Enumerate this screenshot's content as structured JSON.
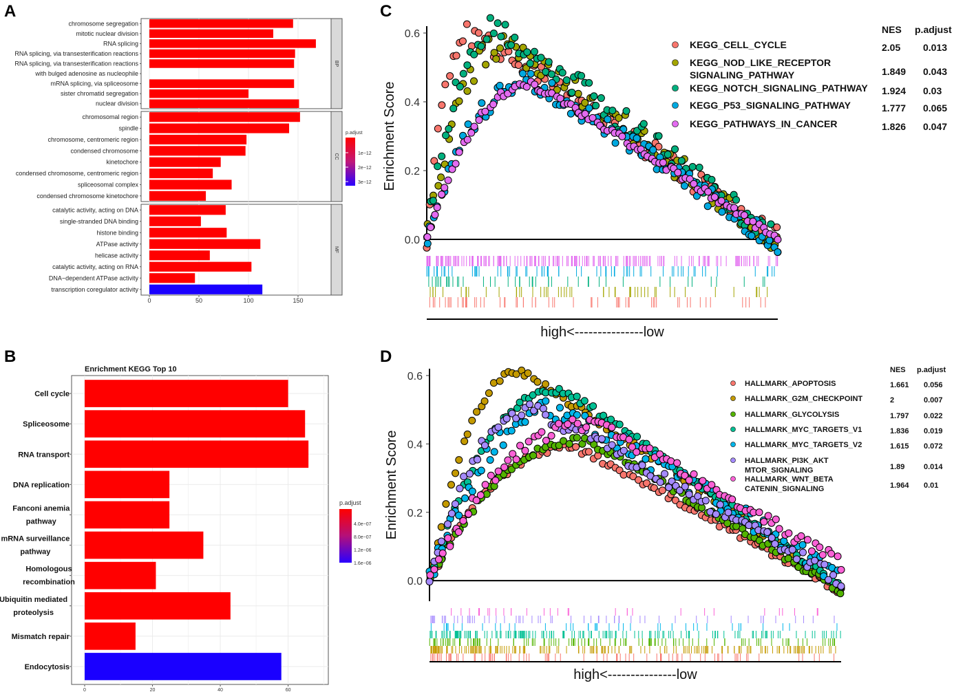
{
  "panels": {
    "A": "A",
    "B": "B",
    "C": "C",
    "D": "D"
  },
  "chart_data": [
    {
      "id": "A",
      "type": "bar",
      "orientation": "horizontal",
      "facets": [
        {
          "name": "BP",
          "categories": [
            "chromosome segregation",
            "mitotic nuclear division",
            "RNA splicing",
            "RNA splicing, via transesterification reactions",
            "RNA splicing, via transesterification reactions",
            "with bulged adenosine as nucleophile",
            "mRNA splicing, via spliceosome",
            "sister chromatid segregation",
            "nuclear division"
          ],
          "values": [
            145,
            125,
            168,
            147,
            146,
            null,
            146,
            100,
            151
          ],
          "colors": [
            "#ff0000",
            "#ff0000",
            "#ff0000",
            "#ff0000",
            "#ff0000",
            "#ff0000",
            "#ff0000",
            "#ff0000",
            "#ff0000"
          ]
        },
        {
          "name": "CC",
          "categories": [
            "chromosomal region",
            "spindle",
            "chromosome, centromeric region",
            "condensed chromosome",
            "kinetochore",
            "condensed chromosome, centromeric region",
            "spliceosomal complex",
            "condensed chromosome kinetochore"
          ],
          "values": [
            152,
            141,
            98,
            97,
            72,
            64,
            83,
            57
          ],
          "colors": [
            "#ff0000",
            "#ff0000",
            "#ff0000",
            "#ff0000",
            "#ff0000",
            "#ff0000",
            "#ff0000",
            "#ff0000"
          ]
        },
        {
          "name": "MF",
          "categories": [
            "catalytic activity, acting on DNA",
            "single-stranded DNA binding",
            "histone binding",
            "ATPase activity",
            "helicase activity",
            "catalytic activity, acting on RNA",
            "DNA−dependent ATPase activity",
            "transcription coregulator activity"
          ],
          "values": [
            77,
            52,
            78,
            112,
            61,
            103,
            46,
            114
          ],
          "colors": [
            "#ff0000",
            "#ff0000",
            "#ff0000",
            "#ff0000",
            "#ff0000",
            "#ff0000",
            "#ff0000",
            "#1a00ff"
          ]
        }
      ],
      "xticks": [
        0,
        50,
        100,
        150
      ],
      "xlim": [
        0,
        175
      ],
      "legend": {
        "title": "p.adjust",
        "labels": [
          "1e−12",
          "2e−12",
          "3e−12"
        ],
        "colors": [
          "#ff0000",
          "#c0187a",
          "#2a00ff"
        ]
      }
    },
    {
      "id": "B",
      "type": "bar",
      "orientation": "horizontal",
      "title": "Enrichment KEGG Top 10",
      "categories": [
        [
          "Cell cycle"
        ],
        [
          "Spliceosome"
        ],
        [
          "RNA transport"
        ],
        [
          "DNA replication"
        ],
        [
          "Fanconi anemia",
          "pathway"
        ],
        [
          "mRNA surveillance",
          "pathway"
        ],
        [
          "Homologous",
          "recombination"
        ],
        [
          "Ubiquitin mediated",
          "proteolysis"
        ],
        [
          "Mismatch repair"
        ],
        [
          "Endocytosis"
        ]
      ],
      "values": [
        60,
        65,
        66,
        25,
        25,
        35,
        21,
        43,
        15,
        58
      ],
      "colors": [
        "#ff0000",
        "#ff0000",
        "#ff0000",
        "#ff0000",
        "#ff0000",
        "#ff0000",
        "#ff0000",
        "#ff0000",
        "#ff0000",
        "#1a00ff"
      ],
      "xticks": [
        0,
        20,
        40,
        60
      ],
      "xlim": [
        0,
        68
      ],
      "legend": {
        "title": "p.adjust",
        "labels": [
          "4.0e−07",
          "8.0e−07",
          "1.2e−06",
          "1.6e−06"
        ],
        "colors": [
          "#ff0000",
          "#2a00ff"
        ]
      }
    },
    {
      "id": "C",
      "type": "scatter",
      "ylabel": "Enrichment Score",
      "yticks": [
        "0.0",
        "0.2",
        "0.4",
        "0.6"
      ],
      "ylim": [
        -0.02,
        0.62
      ],
      "xlabel": "high<---------------low",
      "legend_header": {
        "nes": "NES",
        "padj": "p.adjust"
      },
      "series": [
        {
          "name": "KEGG_CELL_CYCLE",
          "nes": "2.05",
          "padj": "0.013",
          "color": "#f8766d",
          "peak": 0.6,
          "peak_x": 0.12,
          "end": 0.0,
          "noise": 0.035,
          "ticks": 60
        },
        {
          "name": [
            "KEGG_NOD_LIKE_RECEPTOR",
            "SIGNALING_PATHWAY"
          ],
          "nes": "1.849",
          "padj": "0.043",
          "color": "#a3a500",
          "peak": 0.56,
          "peak_x": 0.22,
          "end": 0.0,
          "noise": 0.04,
          "ticks": 50
        },
        {
          "name": "KEGG_NOTCH_SIGNALING_PATHWAY",
          "nes": "1.924",
          "padj": "0.03",
          "color": "#00b07e",
          "peak": 0.61,
          "peak_x": 0.2,
          "end": 0.0,
          "noise": 0.04,
          "ticks": 45
        },
        {
          "name": "KEGG_P53_SIGNALING_PATHWAY",
          "nes": "1.777",
          "padj": "0.065",
          "color": "#00a9e0",
          "peak": 0.46,
          "peak_x": 0.3,
          "end": -0.015,
          "noise": 0.03,
          "ticks": 70
        },
        {
          "name": "KEGG_PATHWAYS_IN_CANCER",
          "nes": "1.826",
          "padj": "0.047",
          "color": "#e36bf0",
          "peak": 0.45,
          "peak_x": 0.3,
          "end": 0.0,
          "noise": 0.01,
          "ticks": 200
        }
      ]
    },
    {
      "id": "D",
      "type": "scatter",
      "ylabel": "Enrichment Score",
      "yticks": [
        "0.0",
        "0.2",
        "0.4",
        "0.6"
      ],
      "ylim": [
        -0.06,
        0.62
      ],
      "xlabel": "high<---------------low",
      "legend_header": {
        "nes": "NES",
        "padj": "p.adjust"
      },
      "series": [
        {
          "name": "HALLMARK_APOPTOSIS",
          "nes": "1.661",
          "padj": "0.056",
          "color": "#f8766d",
          "peak": 0.39,
          "peak_x": 0.35,
          "end": -0.03,
          "noise": 0.01,
          "ticks": 80
        },
        {
          "name": "HALLMARK_G2M_CHECKPOINT",
          "nes": "2",
          "padj": "0.007",
          "color": "#c49a00",
          "peak": 0.61,
          "peak_x": 0.22,
          "end": -0.02,
          "noise": 0.01,
          "ticks": 180
        },
        {
          "name": "HALLMARK_GLYCOLYSIS",
          "nes": "1.797",
          "padj": "0.022",
          "color": "#53b400",
          "peak": 0.41,
          "peak_x": 0.38,
          "end": -0.03,
          "noise": 0.01,
          "ticks": 120
        },
        {
          "name": "HALLMARK_MYC_TARGETS_V1",
          "nes": "1.836",
          "padj": "0.019",
          "color": "#00c094",
          "peak": 0.56,
          "peak_x": 0.32,
          "end": -0.02,
          "noise": 0.01,
          "ticks": 160
        },
        {
          "name": "HALLMARK_MYC_TARGETS_V2",
          "nes": "1.615",
          "padj": "0.072",
          "color": "#00b6eb",
          "peak": 0.5,
          "peak_x": 0.32,
          "end": 0.01,
          "noise": 0.03,
          "ticks": 40
        },
        {
          "name": [
            "HALLMARK_PI3K_AKT",
            "MTOR_SIGNALING"
          ],
          "nes": "1.89",
          "padj": "0.014",
          "color": "#a58aff",
          "peak": 0.5,
          "peak_x": 0.25,
          "end": 0.0,
          "noise": 0.02,
          "ticks": 60
        },
        {
          "name": [
            "HALLMARK_WNT_BETA",
            "CATENIN_SIGNALING"
          ],
          "nes": "1.964",
          "padj": "0.01",
          "color": "#fb61d7",
          "peak": 0.46,
          "peak_x": 0.4,
          "end": 0.05,
          "noise": 0.02,
          "ticks": 30
        }
      ]
    }
  ]
}
